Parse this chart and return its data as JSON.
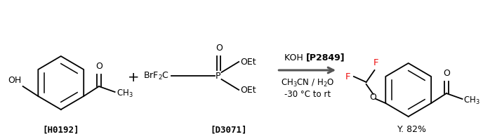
{
  "background_color": "#ffffff",
  "figsize": [
    6.88,
    1.98
  ],
  "dpi": 100,
  "reactant1_label": "[H0192]",
  "reactant2_label": "[D3071]",
  "product_label": "Y. 82%",
  "arrow_color": "#555555",
  "black": "#000000",
  "F_color": "#ee1111",
  "reagent_line1_normal": "KOH ",
  "reagent_line1_bold": "[P2849]",
  "reagent_line2": "CH₃CN / H₂O",
  "reagent_line3": "-30 °C to rt",
  "label_fontsize": 9,
  "reagent_fontsize": 8.5
}
